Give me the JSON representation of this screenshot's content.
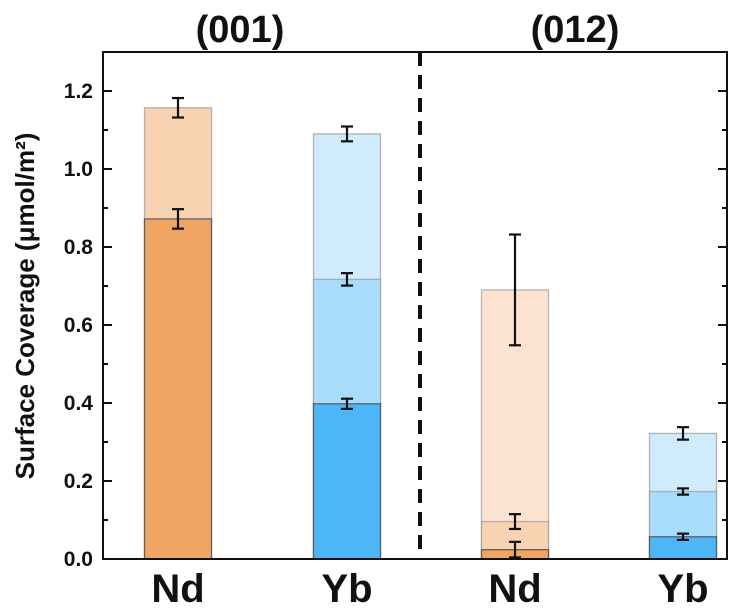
{
  "chart_data": {
    "type": "bar",
    "stacked": true,
    "ylabel": "Surface Coverage (μmol/m²)",
    "ylim": [
      0,
      1.3
    ],
    "yticks": [
      "0.0",
      "0.2",
      "0.4",
      "0.6",
      "0.8",
      "1.0",
      "1.2"
    ],
    "grid": false,
    "groups": [
      {
        "title": "(001)",
        "categories": [
          "Nd",
          "Yb"
        ]
      },
      {
        "title": "(012)",
        "categories": [
          "Nd",
          "Yb"
        ]
      }
    ],
    "bars": [
      {
        "group": "(001)",
        "category": "Nd",
        "color_family": "orange",
        "cumulative_levels": [
          0.872,
          1.157
        ],
        "errors": [
          0.025,
          0.025
        ]
      },
      {
        "group": "(001)",
        "category": "Yb",
        "color_family": "blue",
        "cumulative_levels": [
          0.398,
          0.717,
          1.09
        ],
        "errors": [
          0.013,
          0.016,
          0.019
        ]
      },
      {
        "group": "(012)",
        "category": "Nd",
        "color_family": "orange",
        "cumulative_levels": [
          0.024,
          0.096,
          0.69
        ],
        "errors": [
          0.02,
          0.019,
          0.142
        ]
      },
      {
        "group": "(012)",
        "category": "Yb",
        "color_family": "blue",
        "cumulative_levels": [
          0.057,
          0.173,
          0.322
        ],
        "errors": [
          0.008,
          0.008,
          0.016
        ]
      }
    ],
    "colors": {
      "orange": [
        "#f0a564",
        "#f8d3b2",
        "#fce3d1"
      ],
      "blue": [
        "#4db6f7",
        "#a9dbfb",
        "#d0ebfc"
      ],
      "axis": "#111111"
    }
  }
}
